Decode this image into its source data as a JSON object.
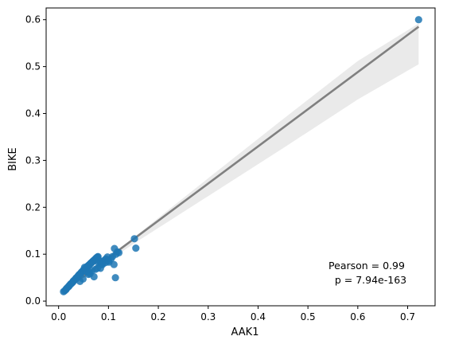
{
  "chart_data": {
    "type": "scatter",
    "title": "",
    "xlabel": "AAK1",
    "ylabel": "BIKE",
    "xlim": [
      -0.025,
      0.755
    ],
    "ylim": [
      -0.01,
      0.625
    ],
    "xticks": [
      0.0,
      0.1,
      0.2,
      0.3,
      0.4,
      0.5,
      0.6,
      0.7
    ],
    "xtick_labels": [
      "0.0",
      "0.1",
      "0.2",
      "0.3",
      "0.4",
      "0.5",
      "0.6",
      "0.7"
    ],
    "yticks": [
      0.0,
      0.1,
      0.2,
      0.3,
      0.4,
      0.5,
      0.6
    ],
    "ytick_labels": [
      "0.0",
      "0.1",
      "0.2",
      "0.3",
      "0.4",
      "0.5",
      "0.6"
    ],
    "grid": false,
    "colors": {
      "points": "#1f77b4",
      "fit_line": "#808080",
      "ci_band": "#d9d9d9"
    },
    "points": {
      "x": [
        0.01,
        0.012,
        0.014,
        0.015,
        0.016,
        0.018,
        0.02,
        0.021,
        0.022,
        0.024,
        0.025,
        0.026,
        0.028,
        0.029,
        0.03,
        0.031,
        0.032,
        0.034,
        0.035,
        0.036,
        0.038,
        0.039,
        0.04,
        0.041,
        0.042,
        0.044,
        0.045,
        0.046,
        0.048,
        0.049,
        0.05,
        0.051,
        0.052,
        0.053,
        0.054,
        0.055,
        0.056,
        0.057,
        0.058,
        0.059,
        0.06,
        0.061,
        0.062,
        0.063,
        0.064,
        0.065,
        0.066,
        0.067,
        0.068,
        0.069,
        0.07,
        0.071,
        0.072,
        0.073,
        0.074,
        0.075,
        0.076,
        0.077,
        0.078,
        0.079,
        0.08,
        0.082,
        0.084,
        0.086,
        0.088,
        0.09,
        0.093,
        0.095,
        0.098,
        0.101,
        0.105,
        0.108,
        0.112,
        0.115,
        0.118,
        0.121,
        0.152,
        0.155,
        0.722,
        0.052,
        0.057,
        0.063,
        0.067,
        0.074,
        0.088,
        0.094,
        0.1,
        0.111,
        0.114,
        0.049,
        0.061,
        0.071,
        0.043,
        0.084,
        0.06,
        0.078
      ],
      "y": [
        0.02,
        0.022,
        0.024,
        0.025,
        0.027,
        0.029,
        0.031,
        0.032,
        0.034,
        0.036,
        0.037,
        0.038,
        0.04,
        0.042,
        0.043,
        0.044,
        0.045,
        0.047,
        0.049,
        0.05,
        0.052,
        0.053,
        0.055,
        0.056,
        0.057,
        0.059,
        0.06,
        0.062,
        0.063,
        0.065,
        0.066,
        0.067,
        0.068,
        0.069,
        0.07,
        0.071,
        0.072,
        0.073,
        0.074,
        0.075,
        0.076,
        0.077,
        0.078,
        0.079,
        0.08,
        0.081,
        0.082,
        0.083,
        0.084,
        0.085,
        0.086,
        0.087,
        0.088,
        0.089,
        0.09,
        0.091,
        0.092,
        0.093,
        0.094,
        0.095,
        0.082,
        0.086,
        0.08,
        0.078,
        0.082,
        0.085,
        0.088,
        0.09,
        0.094,
        0.083,
        0.09,
        0.095,
        0.112,
        0.1,
        0.105,
        0.103,
        0.133,
        0.113,
        0.6,
        0.072,
        0.062,
        0.058,
        0.065,
        0.068,
        0.078,
        0.082,
        0.086,
        0.078,
        0.05,
        0.047,
        0.062,
        0.052,
        0.042,
        0.07,
        0.057,
        0.07
      ]
    },
    "fit_line": {
      "x": [
        0.01,
        0.722
      ],
      "y": [
        0.021,
        0.585
      ]
    },
    "ci_band": {
      "x": [
        0.01,
        0.15,
        0.3,
        0.45,
        0.6,
        0.722
      ],
      "upper": [
        0.023,
        0.135,
        0.262,
        0.388,
        0.512,
        0.592
      ],
      "lower": [
        0.019,
        0.122,
        0.224,
        0.326,
        0.43,
        0.505
      ]
    },
    "annotation": {
      "line1": "Pearson = 0.99",
      "line2": "p = 7.94e-163"
    }
  }
}
